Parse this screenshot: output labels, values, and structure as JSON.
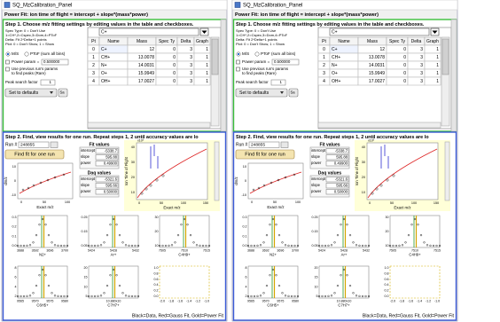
{
  "panels": [
    {
      "window_title": "SQ_MzCalibration_Panel",
      "formula": "Power Fit: ion time of flight = intercept + slope*(mass*power)",
      "step1": {
        "title": "Step 1. Choose m/z fitting settings by editing values in the table and checkboxes.",
        "notes": [
          "Spec Type: 0 = Don't Use",
          "1=CH*,2=Cspec,3=Dom,4=PToF",
          "Delta: Fit 2*Delta+1 points",
          "Plot: 0 = Don't Show, 1 = Show"
        ],
        "radio_ms": "M/S",
        "radio_ptof": "PToF (sum all bins)",
        "power_label": "Power param =",
        "power_value": "0.500000",
        "prev_lines": [
          "Use previous run's params",
          "to find peaks (Rare)"
        ],
        "peak_label": "Peak search factor",
        "peak_value": "1",
        "defaults_button": "Set to defaults",
        "save_button": "Sa"
      },
      "table": {
        "selected": "C+",
        "columns": [
          "Pt",
          "Name",
          "Mass",
          "Spec Ty",
          "Delta",
          "Graph"
        ],
        "rows": [
          [
            "0",
            "C+",
            "12",
            "0",
            "3",
            "1"
          ],
          [
            "1",
            "CH+",
            "13.0078",
            "0",
            "3",
            "1"
          ],
          [
            "2",
            "N+",
            "14.0031",
            "0",
            "3",
            "1"
          ],
          [
            "3",
            "O+",
            "15.9949",
            "0",
            "3",
            "1"
          ],
          [
            "4",
            "OH+",
            "17.0027",
            "0",
            "3",
            "1"
          ]
        ]
      },
      "step2": {
        "title": "Step 2. Find, view results for one run.  Repeat steps 1, 2 until accuracy values are lo",
        "run_label": "Run #",
        "run": "248855",
        "button": "Find fit for one run",
        "fit_label": "Fit values",
        "fit": [
          [
            "intercept",
            "-5338.7"
          ],
          [
            "slope",
            "595.88"
          ],
          [
            "power",
            "0.49900"
          ]
        ],
        "daq_label": "Daq values",
        "daq": [
          [
            "intercept",
            "-5321.6"
          ],
          [
            "slope",
            "595.66"
          ],
          [
            "power",
            "0.50000"
          ]
        ]
      },
      "resid_plot": {
        "ylabel": "dm/z",
        "xlabel": "Exact m/z",
        "yticks": [
          "10",
          "0",
          "-10"
        ],
        "xticks": [
          "0",
          "50",
          "100"
        ]
      },
      "tof_plot": {
        "ylabel": "Ion Time of Flight",
        "xlabel": "Exact m/z",
        "yscale": "x10³",
        "yticks": [
          "40",
          "30",
          "20",
          "10"
        ],
        "xticks": [
          "0",
          "50",
          "100",
          "150"
        ]
      },
      "peaks": [
        {
          "label": "N2+",
          "xticks": [
            "3688",
            "3692",
            "3696",
            "3700"
          ],
          "yticks": [
            "0.3",
            "0.2",
            "0.1",
            "0.0"
          ]
        },
        {
          "label": "Ar+",
          "xticks": [
            "5424",
            "5428",
            "5432"
          ],
          "yticks": [
            "0.25",
            "0.15",
            "0.05"
          ]
        },
        {
          "label": "C4H9+",
          "xticks": [
            "7505",
            "7510",
            "7515"
          ],
          "yticks": [
            "30",
            "20",
            "10"
          ]
        },
        {
          "label": "C6H5+",
          "xticks": [
            "9565",
            "9570",
            "9575",
            "9580"
          ],
          "yticks": [
            "8",
            "6",
            "4",
            "2"
          ]
        },
        {
          "label": "C7H7+",
          "xticks": [
            "10.880x10"
          ],
          "yticks": [
            "20",
            "15",
            "10",
            "5"
          ]
        },
        {
          "label": "",
          "xticks": [
            "-2.0",
            "-1.8",
            "-1.6",
            "-1.4",
            "-1.2",
            "-1.0"
          ],
          "yticks": [
            "1.0",
            "0.8",
            "0.6",
            "0.4",
            "0.2",
            "0.0"
          ]
        }
      ],
      "legend": "Black=Data, Red=Gauss Fit, Gold=Power Fit"
    },
    {
      "window_title": "SQ_MzCalibration_Panel",
      "formula": "Power Fit: ion time of flight = intercept + slope*(mass*power)",
      "step1": {
        "title": "Step 1. Choose m/z fitting settings by editing values in the table and checkboxes.",
        "notes": [
          "Spec Type: 0 = Don't Use",
          "1=CH*,2=Cspec,3=Dom,4=PToF",
          "Delta: Fit 2*Delta+1 points",
          "Plot: 0 = Don't Show, 1 = Show"
        ],
        "radio_ms": "M/S",
        "radio_ptof": "PToF (sum all bins)",
        "power_label": "Power param =",
        "power_value": "0.500000",
        "prev_lines": [
          "Use previous run's params",
          "to find peaks (Rare)"
        ],
        "peak_label": "Peak search factor",
        "peak_value": "1",
        "defaults_button": "Set to defaults",
        "save_button": "Sa"
      },
      "table": {
        "selected": "C+",
        "columns": [
          "Pt",
          "Name",
          "Mass",
          "Spec Ty",
          "Delta",
          "Graph"
        ],
        "rows": [
          [
            "0",
            "C+",
            "12",
            "0",
            "3",
            "1"
          ],
          [
            "1",
            "CH+",
            "13.0078",
            "0",
            "3",
            "1"
          ],
          [
            "2",
            "N+",
            "14.0031",
            "0",
            "3",
            "1"
          ],
          [
            "3",
            "O+",
            "15.9949",
            "0",
            "3",
            "1"
          ],
          [
            "4",
            "OH+",
            "17.0027",
            "0",
            "3",
            "1"
          ]
        ]
      },
      "step2": {
        "title": "Step 2. Find, view results for one run.  Repeat steps 1, 2 until accuracy values are lo",
        "run_label": "Run #",
        "run": "248855",
        "button": "Find fit for one run",
        "fit_label": "Fit values",
        "fit": [
          [
            "intercept",
            "-5338.7"
          ],
          [
            "slope",
            "595.88"
          ],
          [
            "power",
            "0.49900"
          ]
        ],
        "daq_label": "Daq values",
        "daq": [
          [
            "intercept",
            "-5321.6"
          ],
          [
            "slope",
            "595.66"
          ],
          [
            "power",
            "0.50000"
          ]
        ]
      },
      "resid_plot": {
        "ylabel": "dm/z",
        "xlabel": "Exact m/z",
        "yticks": [
          "10",
          "0",
          "-10"
        ],
        "xticks": [
          "0",
          "50",
          "100"
        ]
      },
      "tof_plot": {
        "ylabel": "Ion Time of Flight",
        "xlabel": "Exact m/z",
        "yscale": "x10³",
        "yticks": [
          "40",
          "30",
          "20",
          "10"
        ],
        "xticks": [
          "0",
          "50",
          "100",
          "150"
        ]
      },
      "peaks": [
        {
          "label": "N2+",
          "xticks": [
            "3688",
            "3692",
            "3696",
            "3700"
          ],
          "yticks": [
            "0.3",
            "0.2",
            "0.1",
            "0.0"
          ]
        },
        {
          "label": "Ar+",
          "xticks": [
            "5424",
            "5428",
            "5432"
          ],
          "yticks": [
            "0.25",
            "0.15",
            "0.05"
          ]
        },
        {
          "label": "C4H9+",
          "xticks": [
            "7505",
            "7510",
            "7515"
          ],
          "yticks": [
            "30",
            "20",
            "10"
          ]
        },
        {
          "label": "C6H5+",
          "xticks": [
            "9565",
            "9570",
            "9575",
            "9580"
          ],
          "yticks": [
            "8",
            "6",
            "4",
            "2"
          ]
        },
        {
          "label": "C7H7+",
          "xticks": [
            "10.880x10"
          ],
          "yticks": [
            "20",
            "15",
            "10",
            "5"
          ]
        },
        {
          "label": "",
          "xticks": [
            "-2.0",
            "-1.8",
            "-1.6",
            "-1.4",
            "-1.2",
            "-1.0"
          ],
          "yticks": [
            "1.0",
            "0.8",
            "0.6",
            "0.4",
            "0.2",
            "0.0"
          ]
        }
      ],
      "legend": "Black=Data, Red=Gauss Fit, Gold=Power Fit"
    }
  ]
}
